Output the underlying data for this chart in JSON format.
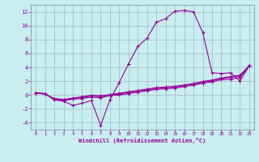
{
  "xlabel": "Windchill (Refroidissement éolien,°C)",
  "xlim": [
    -0.5,
    23.5
  ],
  "ylim": [
    -5,
    13
  ],
  "yticks": [
    -4,
    -2,
    0,
    2,
    4,
    6,
    8,
    10,
    12
  ],
  "xticks": [
    0,
    1,
    2,
    3,
    4,
    5,
    6,
    7,
    8,
    9,
    10,
    11,
    12,
    13,
    14,
    15,
    16,
    17,
    18,
    19,
    20,
    21,
    22,
    23
  ],
  "xtick_labels": [
    "0",
    "1",
    "2",
    "3",
    "4",
    "5",
    "6",
    "7",
    "8",
    "9",
    "10",
    "11",
    "12",
    "13",
    "14",
    "15",
    "16",
    "17",
    "18",
    "19",
    "20",
    "21",
    "22",
    "23"
  ],
  "bg_color": "#c8eef0",
  "line_color": "#990099",
  "grid_color": "#99aabb",
  "big_curve": [
    0.3,
    0.2,
    -0.7,
    -0.9,
    -1.5,
    -1.2,
    -0.8,
    -4.4,
    -0.7,
    1.8,
    4.5,
    7.0,
    8.2,
    10.5,
    11.0,
    12.1,
    12.2,
    12.0,
    9.0,
    3.2,
    3.1,
    3.2,
    2.0,
    4.2
  ],
  "line1": [
    0.3,
    0.2,
    -0.7,
    -0.8,
    -0.6,
    -0.5,
    -0.3,
    -0.4,
    -0.1,
    0.0,
    0.2,
    0.4,
    0.6,
    0.8,
    0.9,
    1.0,
    1.2,
    1.4,
    1.7,
    1.9,
    2.2,
    2.3,
    2.5,
    4.2
  ],
  "line2": [
    0.3,
    0.15,
    -0.6,
    -0.75,
    -0.55,
    -0.35,
    -0.15,
    -0.25,
    0.0,
    0.15,
    0.35,
    0.55,
    0.75,
    0.95,
    1.05,
    1.15,
    1.35,
    1.55,
    1.85,
    2.05,
    2.35,
    2.55,
    2.75,
    4.2
  ],
  "line3": [
    0.3,
    0.1,
    -0.5,
    -0.65,
    -0.45,
    -0.25,
    -0.05,
    -0.1,
    0.05,
    0.25,
    0.45,
    0.65,
    0.85,
    1.05,
    1.15,
    1.25,
    1.45,
    1.65,
    1.95,
    2.15,
    2.45,
    2.65,
    2.85,
    4.2
  ]
}
